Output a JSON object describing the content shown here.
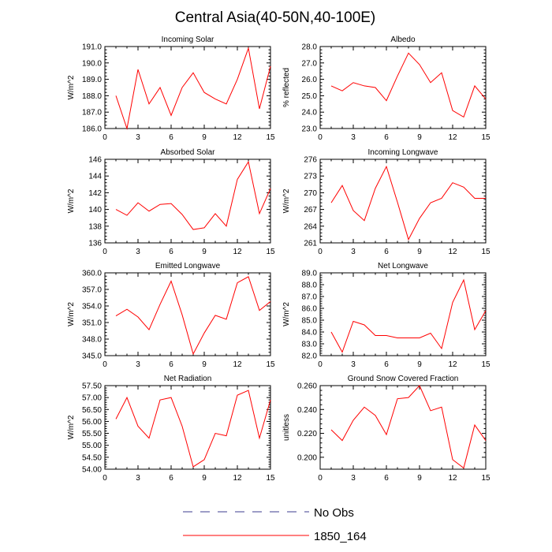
{
  "title": "Central Asia(40-50N,40-100E)",
  "colors": {
    "model": "#ff0000",
    "obs": "#3b3b8f",
    "axis": "#000000"
  },
  "legend": [
    {
      "label": "No Obs",
      "style": "dashed",
      "color": "#3b3b8f"
    },
    {
      "label": "1850_164",
      "style": "solid",
      "color": "#ff0000"
    }
  ],
  "chart_data": [
    {
      "type": "line",
      "title": "Incoming Solar",
      "xlabel": "",
      "ylabel": "W/m^2",
      "xlim": [
        0,
        15
      ],
      "xticks": [
        0,
        3,
        6,
        9,
        12,
        15
      ],
      "ylim": [
        186,
        191
      ],
      "yticks": [
        "186.0",
        "187.0",
        "188.0",
        "189.0",
        "190.0",
        "191.0"
      ],
      "x": [
        1,
        2,
        3,
        4,
        5,
        6,
        7,
        8,
        9,
        10,
        11,
        12,
        13,
        14,
        15
      ],
      "series": [
        {
          "name": "1850_164",
          "values": [
            188.0,
            186.0,
            189.6,
            187.5,
            188.5,
            186.8,
            188.5,
            189.4,
            188.2,
            187.8,
            187.5,
            189.0,
            190.9,
            187.2,
            189.8
          ]
        }
      ]
    },
    {
      "type": "line",
      "title": "Albedo",
      "xlabel": "",
      "ylabel": "% reflected",
      "xlim": [
        0,
        15
      ],
      "xticks": [
        0,
        3,
        6,
        9,
        12,
        15
      ],
      "ylim": [
        23,
        28
      ],
      "yticks": [
        "23.0",
        "24.0",
        "25.0",
        "26.0",
        "27.0",
        "28.0"
      ],
      "x": [
        1,
        2,
        3,
        4,
        5,
        6,
        7,
        8,
        9,
        10,
        11,
        12,
        13,
        14,
        15
      ],
      "series": [
        {
          "name": "1850_164",
          "values": [
            25.6,
            25.3,
            25.8,
            25.6,
            25.5,
            24.7,
            26.2,
            27.6,
            26.9,
            25.8,
            26.4,
            24.1,
            23.7,
            25.6,
            24.8
          ]
        }
      ]
    },
    {
      "type": "line",
      "title": "Absorbed Solar",
      "xlabel": "",
      "ylabel": "W/m^2",
      "xlim": [
        0,
        15
      ],
      "xticks": [
        0,
        3,
        6,
        9,
        12,
        15
      ],
      "ylim": [
        136,
        146
      ],
      "yticks": [
        "136",
        "138",
        "140",
        "142",
        "144",
        "146"
      ],
      "x": [
        1,
        2,
        3,
        4,
        5,
        6,
        7,
        8,
        9,
        10,
        11,
        12,
        13,
        14,
        15
      ],
      "series": [
        {
          "name": "1850_164",
          "values": [
            140.0,
            139.3,
            140.8,
            139.8,
            140.6,
            140.7,
            139.4,
            137.6,
            137.8,
            139.5,
            138.0,
            143.6,
            145.7,
            139.5,
            142.5
          ]
        }
      ]
    },
    {
      "type": "line",
      "title": "Incoming Longwave",
      "xlabel": "",
      "ylabel": "W/m^2",
      "xlim": [
        0,
        15
      ],
      "xticks": [
        0,
        3,
        6,
        9,
        12,
        15
      ],
      "ylim": [
        261,
        276
      ],
      "yticks": [
        "261",
        "264",
        "267",
        "270",
        "273",
        "276"
      ],
      "x": [
        1,
        2,
        3,
        4,
        5,
        6,
        7,
        8,
        9,
        10,
        11,
        12,
        13,
        14,
        15
      ],
      "series": [
        {
          "name": "1850_164",
          "values": [
            268.2,
            271.3,
            266.8,
            265.0,
            270.8,
            274.7,
            268.3,
            261.6,
            265.4,
            268.2,
            269.0,
            271.8,
            271.0,
            269.0,
            269.0
          ]
        }
      ]
    },
    {
      "type": "line",
      "title": "Emitted Longwave",
      "xlabel": "",
      "ylabel": "W/m^2",
      "xlim": [
        0,
        15
      ],
      "xticks": [
        0,
        3,
        6,
        9,
        12,
        15
      ],
      "ylim": [
        345,
        360
      ],
      "yticks": [
        "345.0",
        "348.0",
        "351.0",
        "354.0",
        "357.0",
        "360.0"
      ],
      "x": [
        1,
        2,
        3,
        4,
        5,
        6,
        7,
        8,
        9,
        10,
        11,
        12,
        13,
        14,
        15
      ],
      "series": [
        {
          "name": "1850_164",
          "values": [
            352.2,
            353.4,
            352.0,
            349.7,
            354.3,
            358.5,
            352.4,
            345.3,
            349.1,
            352.3,
            351.6,
            358.2,
            359.3,
            353.2,
            354.8
          ]
        }
      ]
    },
    {
      "type": "line",
      "title": "Net Longwave",
      "xlabel": "",
      "ylabel": "W/m^2",
      "xlim": [
        0,
        15
      ],
      "xticks": [
        0,
        3,
        6,
        9,
        12,
        15
      ],
      "ylim": [
        82,
        89
      ],
      "yticks": [
        "82.0",
        "83.0",
        "84.0",
        "85.0",
        "86.0",
        "87.0",
        "88.0",
        "89.0"
      ],
      "x": [
        1,
        2,
        3,
        4,
        5,
        6,
        7,
        8,
        9,
        10,
        11,
        12,
        13,
        14,
        15
      ],
      "series": [
        {
          "name": "1850_164",
          "values": [
            84.0,
            82.3,
            84.9,
            84.6,
            83.7,
            83.7,
            83.5,
            83.5,
            83.5,
            83.9,
            82.6,
            86.5,
            88.4,
            84.2,
            85.8
          ]
        }
      ]
    },
    {
      "type": "line",
      "title": "Net Radiation",
      "xlabel": "",
      "ylabel": "W/m^2",
      "xlim": [
        0,
        15
      ],
      "xticks": [
        0,
        3,
        6,
        9,
        12,
        15
      ],
      "ylim": [
        54,
        57.5
      ],
      "yticks": [
        "54.00",
        "54.50",
        "55.00",
        "55.50",
        "56.00",
        "56.50",
        "57.00",
        "57.50"
      ],
      "x": [
        1,
        2,
        3,
        4,
        5,
        6,
        7,
        8,
        9,
        10,
        11,
        12,
        13,
        14,
        15
      ],
      "series": [
        {
          "name": "1850_164",
          "values": [
            56.1,
            57.0,
            55.8,
            55.3,
            56.9,
            57.0,
            55.8,
            54.1,
            54.4,
            55.5,
            55.4,
            57.1,
            57.3,
            55.3,
            56.9
          ]
        }
      ]
    },
    {
      "type": "line",
      "title": "Ground Snow Covered Fraction",
      "xlabel": "",
      "ylabel": "unitless",
      "xlim": [
        0,
        15
      ],
      "xticks": [
        0,
        3,
        6,
        9,
        12,
        15
      ],
      "ylim": [
        0.19,
        0.26
      ],
      "yticks": [
        "0.200",
        "0.220",
        "0.240",
        "0.260"
      ],
      "ytickvals": [
        0.2,
        0.22,
        0.24,
        0.26
      ],
      "x": [
        1,
        2,
        3,
        4,
        5,
        6,
        7,
        8,
        9,
        10,
        11,
        12,
        13,
        14,
        15
      ],
      "series": [
        {
          "name": "1850_164",
          "values": [
            0.223,
            0.214,
            0.231,
            0.242,
            0.235,
            0.219,
            0.249,
            0.25,
            0.26,
            0.239,
            0.242,
            0.198,
            0.191,
            0.227,
            0.214
          ]
        }
      ]
    }
  ]
}
